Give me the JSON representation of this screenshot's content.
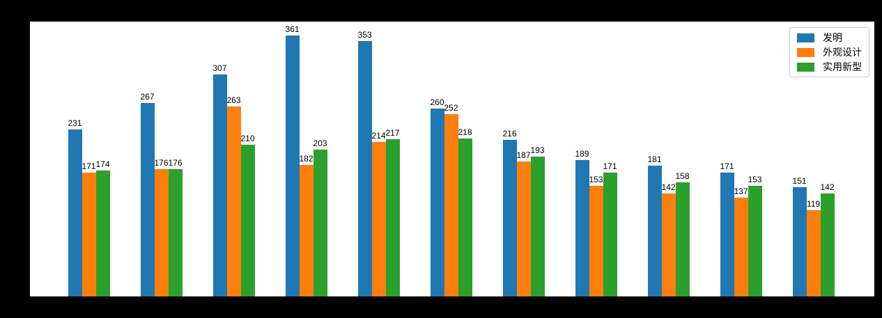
{
  "figure": {
    "background_color": "#000000",
    "plot_background_color": "#ffffff"
  },
  "chart_data": {
    "type": "bar",
    "title": "",
    "xlabel": "",
    "ylabel": "",
    "n_groups": 11,
    "series": [
      {
        "name": "发明",
        "color": "#1f77b4",
        "values": [
          231,
          267,
          307,
          361,
          353,
          260,
          216,
          189,
          181,
          171,
          151
        ]
      },
      {
        "name": "外观设计",
        "color": "#ff7f0e",
        "values": [
          171,
          176,
          263,
          182,
          214,
          252,
          187,
          153,
          142,
          137,
          119
        ]
      },
      {
        "name": "实用新型",
        "color": "#2ca02c",
        "values": [
          174,
          176,
          210,
          203,
          217,
          218,
          193,
          171,
          158,
          153,
          142
        ]
      }
    ],
    "ylim": [
      0,
      380
    ],
    "bar_value_labels_shown": true,
    "grid": false,
    "x_axis_tick_labels_visible": false,
    "y_axis_tick_labels_visible": false,
    "legend_position": "upper right"
  },
  "legend": {
    "items": [
      {
        "label": "发明",
        "color": "#1f77b4"
      },
      {
        "label": "外观设计",
        "color": "#ff7f0e"
      },
      {
        "label": "实用新型",
        "color": "#2ca02c"
      }
    ]
  }
}
